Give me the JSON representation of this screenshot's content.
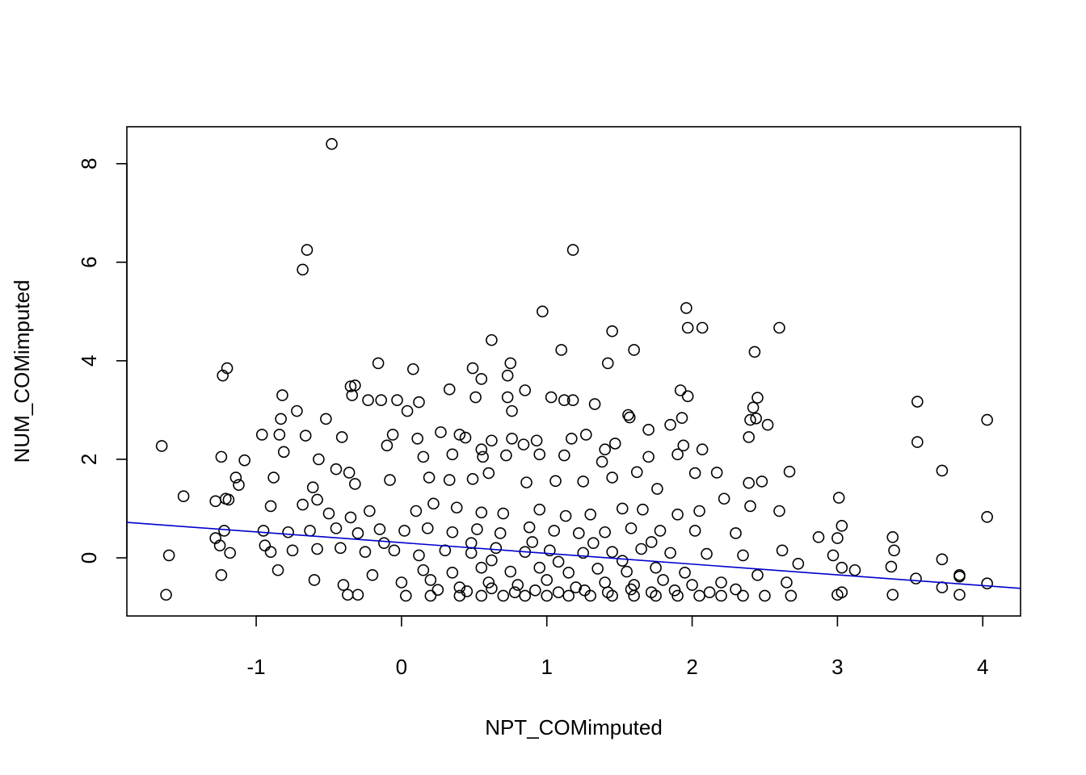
{
  "chart_data": {
    "type": "scatter",
    "title": "",
    "xlabel": "NPT_COMimputed",
    "ylabel": "NUM_COMimputed",
    "xlim": [
      -1.89,
      4.26
    ],
    "ylim": [
      -1.18,
      8.75
    ],
    "xticks": [
      -1,
      0,
      1,
      2,
      3,
      4
    ],
    "yticks": [
      0,
      2,
      4,
      6,
      8
    ],
    "grid": false,
    "legend": "none",
    "point_color": "#000000",
    "fit_line": {
      "color": "#0000cc",
      "x": [
        -1.89,
        4.26
      ],
      "y": [
        0.72,
        -0.62
      ]
    },
    "points": [
      [
        -0.48,
        8.4
      ],
      [
        -0.65,
        6.25
      ],
      [
        -0.68,
        5.85
      ],
      [
        1.18,
        6.25
      ],
      [
        0.97,
        5.0
      ],
      [
        1.96,
        5.07
      ],
      [
        1.97,
        4.67
      ],
      [
        2.07,
        4.67
      ],
      [
        2.6,
        4.67
      ],
      [
        1.45,
        4.6
      ],
      [
        0.62,
        4.42
      ],
      [
        1.1,
        4.22
      ],
      [
        1.6,
        4.22
      ],
      [
        2.43,
        4.18
      ],
      [
        -0.16,
        3.95
      ],
      [
        0.75,
        3.95
      ],
      [
        1.42,
        3.95
      ],
      [
        -1.2,
        3.85
      ],
      [
        -1.23,
        3.7
      ],
      [
        0.08,
        3.83
      ],
      [
        0.49,
        3.85
      ],
      [
        0.55,
        3.63
      ],
      [
        0.73,
        3.7
      ],
      [
        -0.32,
        3.5
      ],
      [
        -0.35,
        3.48
      ],
      [
        -0.34,
        3.3
      ],
      [
        0.33,
        3.42
      ],
      [
        0.85,
        3.4
      ],
      [
        1.92,
        3.4
      ],
      [
        -0.82,
        3.3
      ],
      [
        -0.23,
        3.2
      ],
      [
        -0.14,
        3.2
      ],
      [
        -0.03,
        3.2
      ],
      [
        0.12,
        3.16
      ],
      [
        0.51,
        3.26
      ],
      [
        0.73,
        3.26
      ],
      [
        1.03,
        3.26
      ],
      [
        1.12,
        3.2
      ],
      [
        1.18,
        3.2
      ],
      [
        1.97,
        3.28
      ],
      [
        2.45,
        3.25
      ],
      [
        3.55,
        3.17
      ],
      [
        -0.72,
        2.98
      ],
      [
        -0.52,
        2.82
      ],
      [
        -0.83,
        2.82
      ],
      [
        0.04,
        2.98
      ],
      [
        0.76,
        2.98
      ],
      [
        1.33,
        3.12
      ],
      [
        1.56,
        2.9
      ],
      [
        1.57,
        2.85
      ],
      [
        1.93,
        2.84
      ],
      [
        2.4,
        2.8
      ],
      [
        2.44,
        2.83
      ],
      [
        2.42,
        3.05
      ],
      [
        4.03,
        2.8
      ],
      [
        -0.96,
        2.5
      ],
      [
        -0.84,
        2.5
      ],
      [
        -0.66,
        2.48
      ],
      [
        -0.41,
        2.45
      ],
      [
        -0.06,
        2.5
      ],
      [
        0.11,
        2.42
      ],
      [
        0.27,
        2.55
      ],
      [
        0.4,
        2.5
      ],
      [
        0.44,
        2.44
      ],
      [
        0.55,
        2.2
      ],
      [
        0.62,
        2.38
      ],
      [
        0.76,
        2.42
      ],
      [
        0.84,
        2.3
      ],
      [
        0.93,
        2.38
      ],
      [
        1.17,
        2.42
      ],
      [
        1.27,
        2.5
      ],
      [
        1.4,
        2.2
      ],
      [
        1.47,
        2.32
      ],
      [
        1.7,
        2.6
      ],
      [
        1.85,
        2.7
      ],
      [
        1.94,
        2.28
      ],
      [
        2.39,
        2.45
      ],
      [
        2.52,
        2.7
      ],
      [
        3.55,
        2.35
      ],
      [
        -1.65,
        2.27
      ],
      [
        -1.24,
        2.05
      ],
      [
        -1.08,
        1.98
      ],
      [
        -0.81,
        2.15
      ],
      [
        -0.57,
        2.0
      ],
      [
        -0.1,
        2.28
      ],
      [
        0.15,
        2.05
      ],
      [
        0.35,
        2.1
      ],
      [
        0.56,
        2.05
      ],
      [
        0.72,
        2.08
      ],
      [
        0.95,
        2.1
      ],
      [
        1.12,
        2.08
      ],
      [
        1.38,
        1.95
      ],
      [
        1.7,
        2.05
      ],
      [
        1.9,
        2.1
      ],
      [
        2.07,
        2.2
      ],
      [
        -1.14,
        1.63
      ],
      [
        -1.12,
        1.48
      ],
      [
        -1.21,
        1.2
      ],
      [
        -1.19,
        1.18
      ],
      [
        -0.88,
        1.63
      ],
      [
        -0.61,
        1.43
      ],
      [
        -0.45,
        1.8
      ],
      [
        -0.36,
        1.73
      ],
      [
        -0.32,
        1.5
      ],
      [
        -0.08,
        1.58
      ],
      [
        0.19,
        1.63
      ],
      [
        0.33,
        1.58
      ],
      [
        0.49,
        1.6
      ],
      [
        0.6,
        1.72
      ],
      [
        0.86,
        1.53
      ],
      [
        1.06,
        1.56
      ],
      [
        1.25,
        1.55
      ],
      [
        1.45,
        1.63
      ],
      [
        1.62,
        1.74
      ],
      [
        1.76,
        1.4
      ],
      [
        2.02,
        1.72
      ],
      [
        2.17,
        1.73
      ],
      [
        2.39,
        1.52
      ],
      [
        2.48,
        1.55
      ],
      [
        2.67,
        1.75
      ],
      [
        3.72,
        1.77
      ],
      [
        -1.5,
        1.25
      ],
      [
        -1.28,
        1.15
      ],
      [
        -0.9,
        1.05
      ],
      [
        -0.68,
        1.08
      ],
      [
        -0.58,
        1.18
      ],
      [
        -0.5,
        0.9
      ],
      [
        -0.35,
        0.82
      ],
      [
        -0.22,
        0.95
      ],
      [
        0.1,
        0.95
      ],
      [
        0.22,
        1.1
      ],
      [
        0.38,
        1.02
      ],
      [
        0.55,
        0.92
      ],
      [
        0.7,
        0.9
      ],
      [
        0.95,
        0.98
      ],
      [
        1.13,
        0.85
      ],
      [
        1.3,
        0.88
      ],
      [
        1.52,
        1.0
      ],
      [
        1.66,
        0.98
      ],
      [
        1.9,
        0.88
      ],
      [
        2.05,
        0.95
      ],
      [
        2.22,
        1.2
      ],
      [
        2.4,
        1.05
      ],
      [
        2.6,
        0.95
      ],
      [
        3.01,
        1.22
      ],
      [
        4.03,
        0.83
      ],
      [
        -0.95,
        0.55
      ],
      [
        -0.78,
        0.52
      ],
      [
        -0.63,
        0.55
      ],
      [
        -0.45,
        0.6
      ],
      [
        -0.3,
        0.5
      ],
      [
        -0.15,
        0.58
      ],
      [
        0.02,
        0.55
      ],
      [
        0.18,
        0.6
      ],
      [
        0.35,
        0.52
      ],
      [
        0.52,
        0.58
      ],
      [
        0.68,
        0.5
      ],
      [
        0.88,
        0.62
      ],
      [
        1.05,
        0.55
      ],
      [
        1.22,
        0.5
      ],
      [
        1.4,
        0.52
      ],
      [
        1.58,
        0.6
      ],
      [
        1.78,
        0.55
      ],
      [
        2.02,
        0.55
      ],
      [
        2.3,
        0.5
      ],
      [
        3.03,
        0.65
      ],
      [
        -1.28,
        0.4
      ],
      [
        -1.22,
        0.55
      ],
      [
        -1.25,
        0.25
      ],
      [
        -1.18,
        0.1
      ],
      [
        -0.94,
        0.25
      ],
      [
        -0.9,
        0.12
      ],
      [
        -0.75,
        0.15
      ],
      [
        -0.58,
        0.18
      ],
      [
        -0.42,
        0.2
      ],
      [
        -0.25,
        0.12
      ],
      [
        -0.05,
        0.15
      ],
      [
        0.12,
        0.05
      ],
      [
        0.3,
        0.15
      ],
      [
        0.48,
        0.1
      ],
      [
        0.65,
        0.2
      ],
      [
        0.85,
        0.12
      ],
      [
        1.02,
        0.15
      ],
      [
        1.25,
        0.1
      ],
      [
        1.45,
        0.12
      ],
      [
        1.65,
        0.18
      ],
      [
        1.85,
        0.1
      ],
      [
        2.1,
        0.08
      ],
      [
        2.35,
        0.05
      ],
      [
        2.62,
        0.15
      ],
      [
        2.87,
        0.42
      ],
      [
        3.0,
        0.4
      ],
      [
        3.38,
        0.42
      ],
      [
        3.39,
        0.15
      ],
      [
        -1.6,
        0.05
      ],
      [
        -1.24,
        -0.35
      ],
      [
        -0.85,
        -0.25
      ],
      [
        -0.6,
        -0.45
      ],
      [
        -0.4,
        -0.55
      ],
      [
        -0.2,
        -0.35
      ],
      [
        0.0,
        -0.5
      ],
      [
        0.2,
        -0.45
      ],
      [
        0.4,
        -0.6
      ],
      [
        0.6,
        -0.5
      ],
      [
        0.8,
        -0.55
      ],
      [
        1.0,
        -0.45
      ],
      [
        1.2,
        -0.6
      ],
      [
        1.4,
        -0.5
      ],
      [
        1.6,
        -0.55
      ],
      [
        1.8,
        -0.45
      ],
      [
        2.0,
        -0.55
      ],
      [
        2.2,
        -0.5
      ],
      [
        2.45,
        -0.35
      ],
      [
        2.65,
        -0.5
      ],
      [
        2.73,
        -0.12
      ],
      [
        2.97,
        0.05
      ],
      [
        3.03,
        -0.2
      ],
      [
        3.12,
        -0.25
      ],
      [
        3.37,
        -0.18
      ],
      [
        3.54,
        -0.42
      ],
      [
        3.72,
        -0.03
      ],
      [
        3.72,
        -0.6
      ],
      [
        3.84,
        -0.35
      ],
      [
        3.84,
        -0.38
      ],
      [
        4.03,
        -0.52
      ],
      [
        -1.62,
        -0.75
      ],
      [
        -0.37,
        -0.75
      ],
      [
        -0.3,
        -0.75
      ],
      [
        0.03,
        -0.77
      ],
      [
        0.2,
        -0.77
      ],
      [
        0.4,
        -0.77
      ],
      [
        0.55,
        -0.77
      ],
      [
        0.7,
        -0.77
      ],
      [
        0.85,
        -0.77
      ],
      [
        1.0,
        -0.77
      ],
      [
        1.15,
        -0.77
      ],
      [
        1.3,
        -0.77
      ],
      [
        1.45,
        -0.77
      ],
      [
        1.6,
        -0.77
      ],
      [
        1.75,
        -0.77
      ],
      [
        1.9,
        -0.77
      ],
      [
        2.05,
        -0.77
      ],
      [
        2.2,
        -0.77
      ],
      [
        2.35,
        -0.77
      ],
      [
        2.5,
        -0.77
      ],
      [
        2.68,
        -0.77
      ],
      [
        3.0,
        -0.75
      ],
      [
        3.03,
        -0.7
      ],
      [
        3.38,
        -0.75
      ],
      [
        3.84,
        -0.75
      ],
      [
        0.25,
        -0.65
      ],
      [
        0.45,
        -0.68
      ],
      [
        0.62,
        -0.62
      ],
      [
        0.78,
        -0.7
      ],
      [
        0.92,
        -0.66
      ],
      [
        1.08,
        -0.7
      ],
      [
        1.26,
        -0.66
      ],
      [
        1.42,
        -0.7
      ],
      [
        1.58,
        -0.64
      ],
      [
        1.72,
        -0.7
      ],
      [
        1.88,
        -0.66
      ],
      [
        2.12,
        -0.7
      ],
      [
        2.3,
        -0.64
      ],
      [
        0.35,
        -0.3
      ],
      [
        0.55,
        -0.2
      ],
      [
        0.75,
        -0.28
      ],
      [
        0.95,
        -0.2
      ],
      [
        1.15,
        -0.3
      ],
      [
        1.35,
        -0.22
      ],
      [
        1.55,
        -0.28
      ],
      [
        1.75,
        -0.2
      ],
      [
        1.95,
        -0.3
      ],
      [
        0.15,
        -0.25
      ],
      [
        0.48,
        0.3
      ],
      [
        0.9,
        0.32
      ],
      [
        1.32,
        0.3
      ],
      [
        1.72,
        0.32
      ],
      [
        -0.12,
        0.3
      ],
      [
        0.62,
        -0.05
      ],
      [
        1.08,
        -0.08
      ],
      [
        1.52,
        -0.06
      ]
    ]
  }
}
